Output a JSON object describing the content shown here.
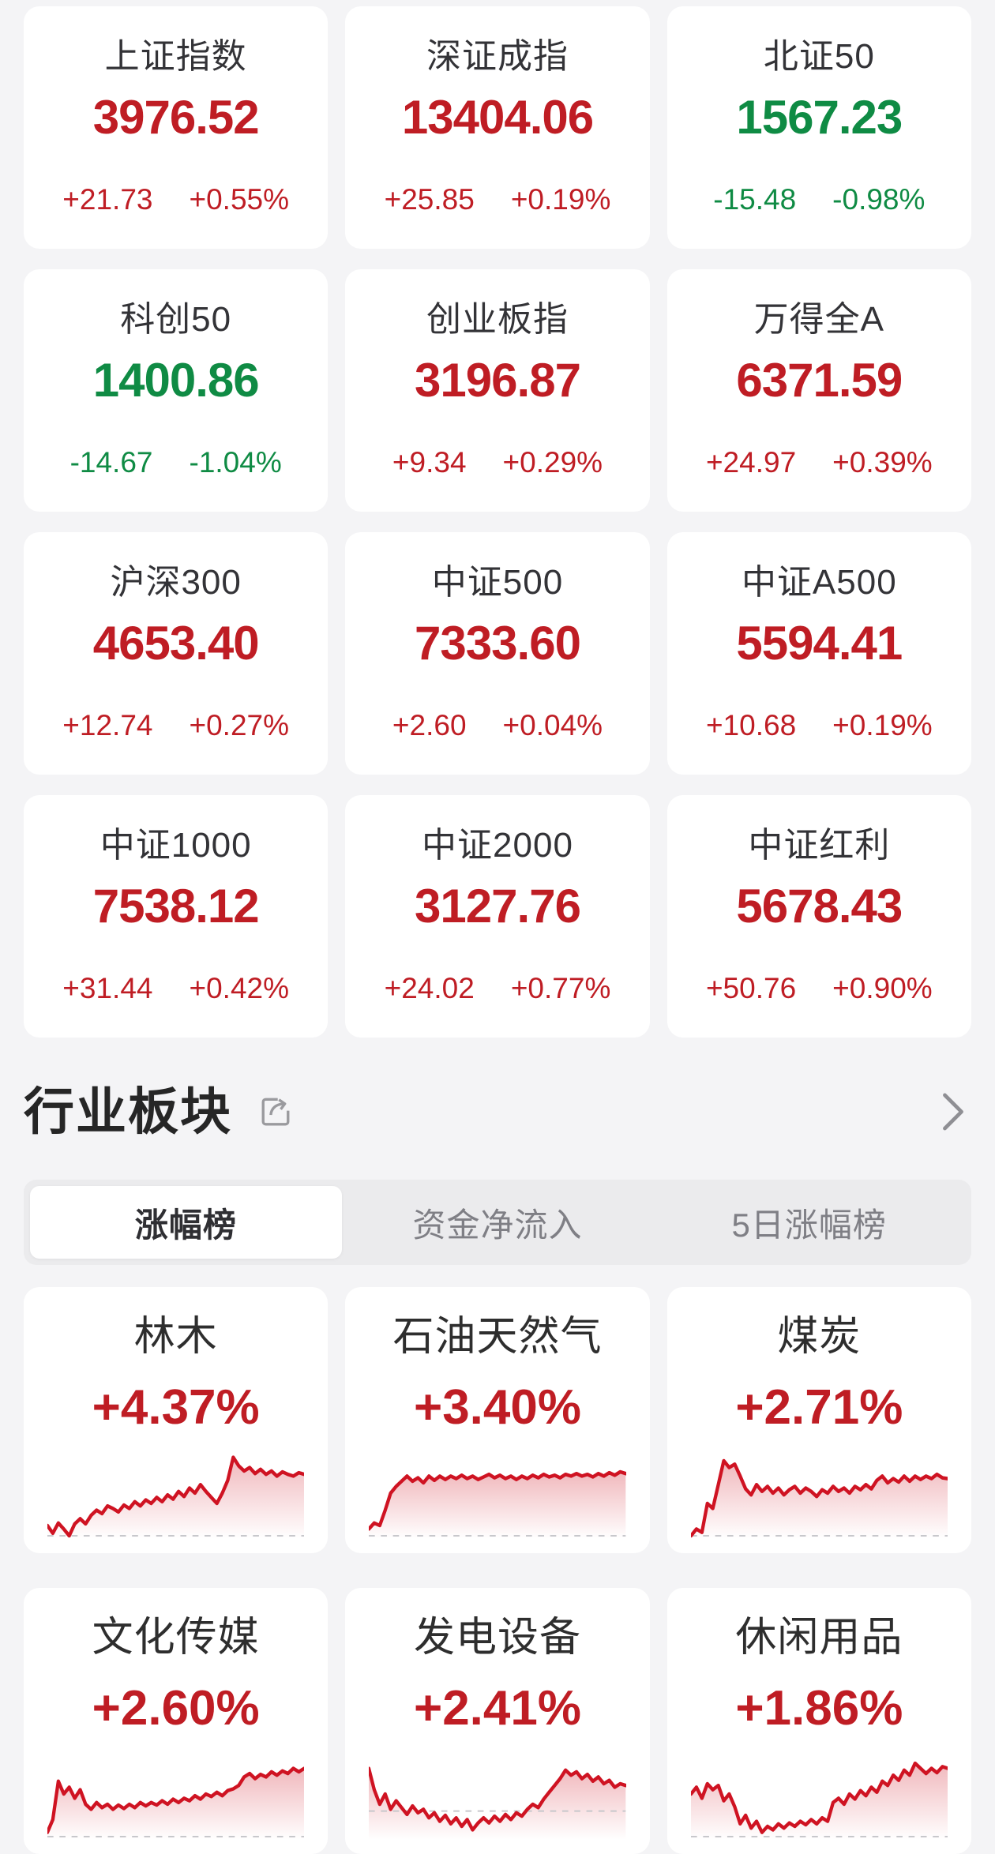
{
  "colors": {
    "up": "#bf1d24",
    "down": "#0f8b44",
    "chart_line": "#cf1322",
    "page_bg": "#f4f4f6",
    "card_bg": "#ffffff",
    "tab_bg": "#ebebed",
    "dash_line": "#c8c8cc"
  },
  "indices": {
    "cards": [
      {
        "name": "上证指数",
        "value": "3976.52",
        "change": "+21.73",
        "change_pct": "+0.55%",
        "direction": "up"
      },
      {
        "name": "深证成指",
        "value": "13404.06",
        "change": "+25.85",
        "change_pct": "+0.19%",
        "direction": "up"
      },
      {
        "name": "北证50",
        "value": "1567.23",
        "change": "-15.48",
        "change_pct": "-0.98%",
        "direction": "down"
      },
      {
        "name": "科创50",
        "value": "1400.86",
        "change": "-14.67",
        "change_pct": "-1.04%",
        "direction": "down"
      },
      {
        "name": "创业板指",
        "value": "3196.87",
        "change": "+9.34",
        "change_pct": "+0.29%",
        "direction": "up"
      },
      {
        "name": "万得全A",
        "value": "6371.59",
        "change": "+24.97",
        "change_pct": "+0.39%",
        "direction": "up"
      },
      {
        "name": "沪深300",
        "value": "4653.40",
        "change": "+12.74",
        "change_pct": "+0.27%",
        "direction": "up"
      },
      {
        "name": "中证500",
        "value": "7333.60",
        "change": "+2.60",
        "change_pct": "+0.04%",
        "direction": "up"
      },
      {
        "name": "中证A500",
        "value": "5594.41",
        "change": "+10.68",
        "change_pct": "+0.19%",
        "direction": "up"
      },
      {
        "name": "中证1000",
        "value": "7538.12",
        "change": "+31.44",
        "change_pct": "+0.42%",
        "direction": "up"
      },
      {
        "name": "中证2000",
        "value": "3127.76",
        "change": "+24.02",
        "change_pct": "+0.77%",
        "direction": "up"
      },
      {
        "name": "中证红利",
        "value": "5678.43",
        "change": "+50.76",
        "change_pct": "+0.90%",
        "direction": "up"
      }
    ]
  },
  "sectors": {
    "title": "行业板块",
    "icons": {
      "share": "share-icon",
      "more": "chevron-right-icon"
    },
    "tabs": [
      {
        "label": "涨幅榜",
        "active": true
      },
      {
        "label": "资金净流入",
        "active": false
      },
      {
        "label": "5日涨幅榜",
        "active": false
      }
    ],
    "cards": [
      {
        "name": "林木",
        "change_pct": "+4.37%",
        "direction": "up",
        "baseline": 1.0,
        "points": [
          0.88,
          0.97,
          0.85,
          0.92,
          1.0,
          0.86,
          0.8,
          0.86,
          0.76,
          0.7,
          0.74,
          0.65,
          0.68,
          0.72,
          0.64,
          0.68,
          0.6,
          0.65,
          0.58,
          0.62,
          0.55,
          0.6,
          0.52,
          0.57,
          0.48,
          0.54,
          0.44,
          0.5,
          0.4,
          0.48,
          0.55,
          0.62,
          0.5,
          0.35,
          0.08,
          0.18,
          0.24,
          0.2,
          0.27,
          0.22,
          0.28,
          0.24,
          0.3,
          0.25,
          0.28,
          0.3,
          0.26,
          0.28
        ]
      },
      {
        "name": "石油天然气",
        "change_pct": "+3.40%",
        "direction": "up",
        "baseline": 1.0,
        "points": [
          0.92,
          0.85,
          0.88,
          0.7,
          0.5,
          0.42,
          0.36,
          0.3,
          0.36,
          0.32,
          0.38,
          0.3,
          0.35,
          0.3,
          0.34,
          0.3,
          0.33,
          0.29,
          0.33,
          0.3,
          0.34,
          0.31,
          0.28,
          0.32,
          0.29,
          0.33,
          0.3,
          0.34,
          0.3,
          0.33,
          0.29,
          0.32,
          0.28,
          0.31,
          0.29,
          0.32,
          0.28,
          0.3,
          0.27,
          0.3,
          0.28,
          0.31,
          0.27,
          0.3,
          0.26,
          0.29,
          0.25,
          0.27
        ]
      },
      {
        "name": "煤炭",
        "change_pct": "+2.71%",
        "direction": "up",
        "baseline": 1.0,
        "points": [
          1.0,
          0.92,
          0.96,
          0.62,
          0.68,
          0.4,
          0.12,
          0.2,
          0.16,
          0.3,
          0.45,
          0.52,
          0.4,
          0.48,
          0.42,
          0.5,
          0.44,
          0.52,
          0.46,
          0.42,
          0.5,
          0.44,
          0.48,
          0.54,
          0.46,
          0.5,
          0.42,
          0.48,
          0.44,
          0.5,
          0.42,
          0.46,
          0.4,
          0.45,
          0.35,
          0.3,
          0.38,
          0.33,
          0.37,
          0.3,
          0.36,
          0.3,
          0.34,
          0.3,
          0.33,
          0.28,
          0.32,
          0.33
        ]
      },
      {
        "name": "文化传媒",
        "change_pct": "+2.60%",
        "direction": "up",
        "baseline": 1.0,
        "points": [
          0.95,
          0.8,
          0.35,
          0.5,
          0.42,
          0.55,
          0.45,
          0.62,
          0.68,
          0.6,
          0.66,
          0.62,
          0.68,
          0.63,
          0.67,
          0.62,
          0.66,
          0.6,
          0.64,
          0.6,
          0.63,
          0.58,
          0.62,
          0.56,
          0.6,
          0.55,
          0.58,
          0.52,
          0.56,
          0.5,
          0.53,
          0.48,
          0.52,
          0.46,
          0.44,
          0.4,
          0.3,
          0.26,
          0.32,
          0.27,
          0.3,
          0.24,
          0.28,
          0.23,
          0.26,
          0.2,
          0.24,
          0.2
        ]
      },
      {
        "name": "发电设备",
        "change_pct": "+2.41%",
        "direction": "up",
        "baseline": 0.7,
        "points": [
          0.2,
          0.45,
          0.62,
          0.5,
          0.68,
          0.58,
          0.66,
          0.74,
          0.64,
          0.72,
          0.68,
          0.78,
          0.72,
          0.82,
          0.75,
          0.85,
          0.78,
          0.88,
          0.8,
          0.92,
          0.84,
          0.78,
          0.84,
          0.76,
          0.82,
          0.74,
          0.8,
          0.72,
          0.76,
          0.68,
          0.62,
          0.66,
          0.56,
          0.48,
          0.4,
          0.32,
          0.22,
          0.28,
          0.24,
          0.32,
          0.27,
          0.35,
          0.3,
          0.38,
          0.34,
          0.42,
          0.38,
          0.4
        ]
      },
      {
        "name": "休闲用品",
        "change_pct": "+1.86%",
        "direction": "up",
        "baseline": 1.0,
        "points": [
          0.5,
          0.42,
          0.55,
          0.38,
          0.45,
          0.4,
          0.58,
          0.5,
          0.65,
          0.85,
          0.75,
          0.9,
          0.82,
          0.95,
          0.88,
          0.92,
          0.85,
          0.9,
          0.84,
          0.88,
          0.82,
          0.86,
          0.8,
          0.85,
          0.78,
          0.82,
          0.6,
          0.55,
          0.62,
          0.5,
          0.56,
          0.46,
          0.52,
          0.42,
          0.48,
          0.35,
          0.4,
          0.28,
          0.34,
          0.22,
          0.28,
          0.14,
          0.2,
          0.26,
          0.2,
          0.25,
          0.18,
          0.2
        ]
      }
    ]
  }
}
